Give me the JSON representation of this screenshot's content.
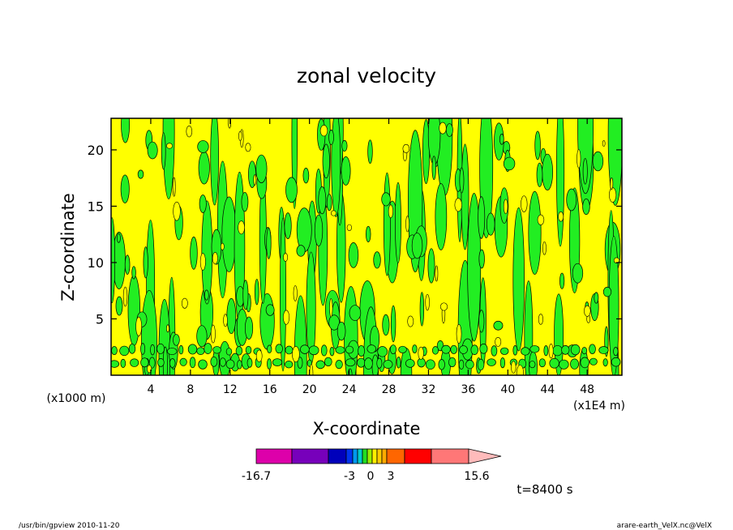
{
  "chart_data": {
    "type": "heatmap",
    "title": "zonal velocity",
    "xlabel": "X-coordinate",
    "ylabel": "Z-coordinate",
    "x_unit_left": "(x1000 m)",
    "x_unit_right": "(x1E4 m)",
    "xlim": [
      0,
      51.5
    ],
    "ylim": [
      0,
      22.8
    ],
    "x_ticks": [
      4,
      8,
      12,
      16,
      20,
      24,
      28,
      32,
      36,
      40,
      44,
      48
    ],
    "y_ticks": [
      5,
      10,
      15,
      20
    ],
    "x_tick_labels": [
      "4",
      "8",
      "12",
      "16",
      "20",
      "24",
      "28",
      "32",
      "36",
      "40",
      "44",
      "48"
    ],
    "y_tick_labels": [
      "5",
      "10",
      "15",
      "20"
    ],
    "dominant_colors": {
      "negative": "#22ee22",
      "positive": "#ffff00",
      "contour": "#000000"
    },
    "colorbar": {
      "colors": [
        "#dd00aa",
        "#7700bb",
        "#0000bb",
        "#0033ee",
        "#0099ee",
        "#00cccc",
        "#22dd22",
        "#99ee00",
        "#ffee00",
        "#ffcc00",
        "#ffaa00",
        "#ff6600",
        "#ff0000",
        "#ff7777",
        "#ffbbbb"
      ],
      "tick_labels": [
        "-16.7",
        "-3",
        "0",
        "3",
        "15.6"
      ]
    },
    "time_label": "t=8400 s",
    "footer_left": "/usr/bin/gpview  2010-11-20",
    "footer_right": "arare-earth_VelX.nc@VelX"
  }
}
